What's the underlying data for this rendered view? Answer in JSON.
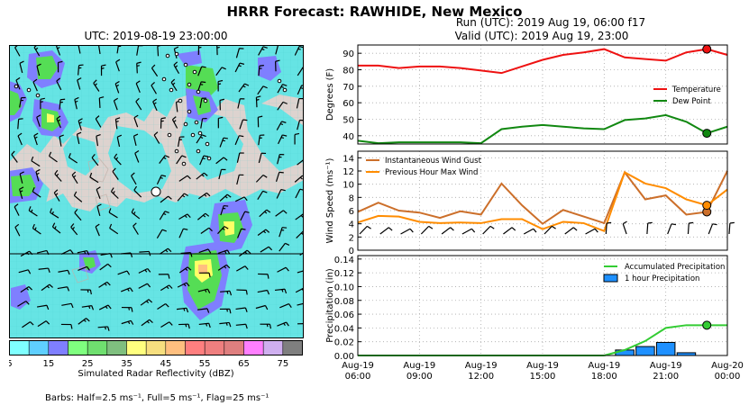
{
  "header": {
    "title": "HRRR Forecast: RAWHIDE, New Mexico",
    "map_title": "UTC: 2019-08-19 23:00:00",
    "run_line": "Run (UTC): 2019 Aug 19, 06:00 f17",
    "valid_line": "Valid (UTC): 2019 Aug 19, 23:00"
  },
  "colorbar": {
    "label": "Simulated Radar Reflectivity (dBZ)",
    "ticks": [
      "5",
      "15",
      "25",
      "35",
      "45",
      "55",
      "65",
      "75"
    ],
    "colors": [
      "#7fffff",
      "#5fcfff",
      "#7f7fff",
      "#7fff7f",
      "#6fdf6f",
      "#7fbf7f",
      "#ffff7f",
      "#f7df7f",
      "#ffbf7f",
      "#ff7f7f",
      "#ef7f7f",
      "#df7f7f",
      "#ff7fff",
      "#cfafef",
      "#7f7f7f"
    ]
  },
  "barbs_note": "Barbs: Half=2.5 ms⁻¹, Full=5 ms⁻¹, Flag=25 ms⁻¹",
  "chart_data": [
    {
      "type": "line",
      "ylabel": "Degrees (F)",
      "ylim": [
        35,
        95
      ],
      "yticks": [
        40,
        50,
        60,
        70,
        80,
        90
      ],
      "x": [
        "06:00",
        "07:00",
        "08:00",
        "09:00",
        "10:00",
        "11:00",
        "12:00",
        "13:00",
        "14:00",
        "15:00",
        "16:00",
        "17:00",
        "18:00",
        "19:00",
        "20:00",
        "21:00",
        "22:00",
        "23:00",
        "00:00"
      ],
      "series": [
        {
          "name": "Temperature",
          "color": "#ee1111",
          "values": [
            82.5,
            82.5,
            81,
            82,
            82,
            81,
            79.5,
            78,
            82,
            86,
            89,
            90.5,
            92.5,
            87.5,
            86.5,
            85.5,
            90.5,
            92.5,
            89
          ]
        },
        {
          "name": "Dew Point",
          "color": "#118811",
          "values": [
            37,
            35.5,
            36,
            36,
            36,
            36,
            35.5,
            44,
            45.5,
            46.5,
            45.5,
            44.5,
            44,
            49.5,
            50.5,
            52.5,
            48.5,
            41.5,
            45.5
          ]
        }
      ],
      "marker": {
        "x": "23:00",
        "values": [
          92.5,
          41.5
        ]
      }
    },
    {
      "type": "line",
      "ylabel": "Wind Speed (ms⁻¹)",
      "ylim": [
        0,
        15
      ],
      "yticks": [
        0,
        2,
        4,
        6,
        8,
        10,
        12,
        14
      ],
      "x": [
        "06:00",
        "07:00",
        "08:00",
        "09:00",
        "10:00",
        "11:00",
        "12:00",
        "13:00",
        "14:00",
        "15:00",
        "16:00",
        "17:00",
        "18:00",
        "19:00",
        "20:00",
        "21:00",
        "22:00",
        "23:00",
        "00:00"
      ],
      "series": [
        {
          "name": "Instantaneous Wind Gust",
          "color": "#cc6f2a",
          "values": [
            5.8,
            7.2,
            6,
            5.7,
            4.9,
            5.9,
            5.4,
            10.1,
            6.8,
            4,
            6.1,
            5.1,
            4.1,
            11.8,
            7.7,
            8.3,
            5.4,
            5.8,
            12
          ]
        },
        {
          "name": "Previous Hour Max Wind",
          "color": "#ff8c00",
          "values": [
            4.2,
            5.2,
            5.1,
            4.3,
            4.1,
            4.2,
            4.1,
            4.7,
            4.7,
            3.2,
            4.3,
            4.1,
            2.9,
            11.8,
            10.1,
            9.4,
            7.7,
            6.8,
            9.2
          ]
        }
      ],
      "marker": {
        "x": "23:00",
        "values": [
          5.8,
          6.8
        ]
      }
    },
    {
      "type": "bar",
      "ylabel": "Precipitation (in)",
      "ylim": [
        0,
        0.145
      ],
      "yticks": [
        0.0,
        0.02,
        0.04,
        0.06,
        0.08,
        0.1,
        0.12,
        0.14
      ],
      "x_ticks": [
        {
          "x": "06:00",
          "label": [
            "Aug-19",
            "06:00"
          ]
        },
        {
          "x": "09:00",
          "label": [
            "Aug-19",
            "09:00"
          ]
        },
        {
          "x": "12:00",
          "label": [
            "Aug-19",
            "12:00"
          ]
        },
        {
          "x": "15:00",
          "label": [
            "Aug-19",
            "15:00"
          ]
        },
        {
          "x": "18:00",
          "label": [
            "Aug-19",
            "18:00"
          ]
        },
        {
          "x": "21:00",
          "label": [
            "Aug-19",
            "21:00"
          ]
        },
        {
          "x": "00:00",
          "label": [
            "Aug-20",
            "00:00"
          ]
        }
      ],
      "series": [
        {
          "name": "Accumulated Precipitation",
          "color": "#33cc33",
          "x": [
            "18:00",
            "19:00",
            "20:00",
            "21:00",
            "22:00",
            "23:00",
            "00:00"
          ],
          "values": [
            0,
            0.008,
            0.021,
            0.04,
            0.044,
            0.044,
            0.044
          ]
        },
        {
          "name": "1 hour Precipitation",
          "color": "#1e90ff",
          "x": [
            "19:00",
            "20:00",
            "21:00",
            "22:00"
          ],
          "values": [
            0.008,
            0.013,
            0.019,
            0.004
          ]
        }
      ],
      "marker": {
        "x": "23:00",
        "values": [
          0.044
        ]
      }
    }
  ]
}
